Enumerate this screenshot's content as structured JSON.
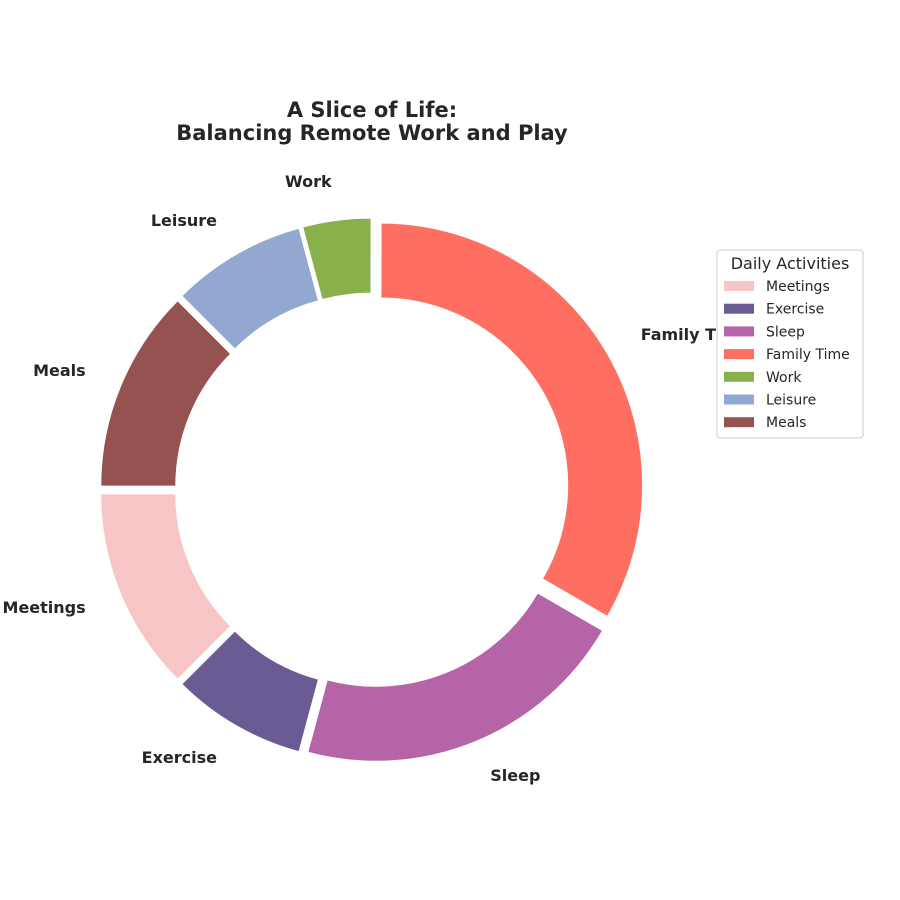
{
  "chart_data": {
    "type": "pie",
    "style": "donut",
    "title_lines": [
      "A Slice of Life:",
      "Balancing Remote Work and Play"
    ],
    "categories": [
      "Meetings",
      "Exercise",
      "Sleep",
      "Family Time",
      "Work",
      "Leisure",
      "Meals"
    ],
    "values": [
      12.5,
      8.3,
      20.8,
      33.3,
      4.2,
      8.3,
      12.5
    ],
    "colors": [
      "#f7c5c5",
      "#6b5b95",
      "#b565a7",
      "#ff6f61",
      "#88b04b",
      "#92a8d1",
      "#955251"
    ],
    "start_angle_deg": 180,
    "direction": "counterclockwise",
    "legend": {
      "title": "Daily Activities",
      "placement": "right"
    }
  }
}
